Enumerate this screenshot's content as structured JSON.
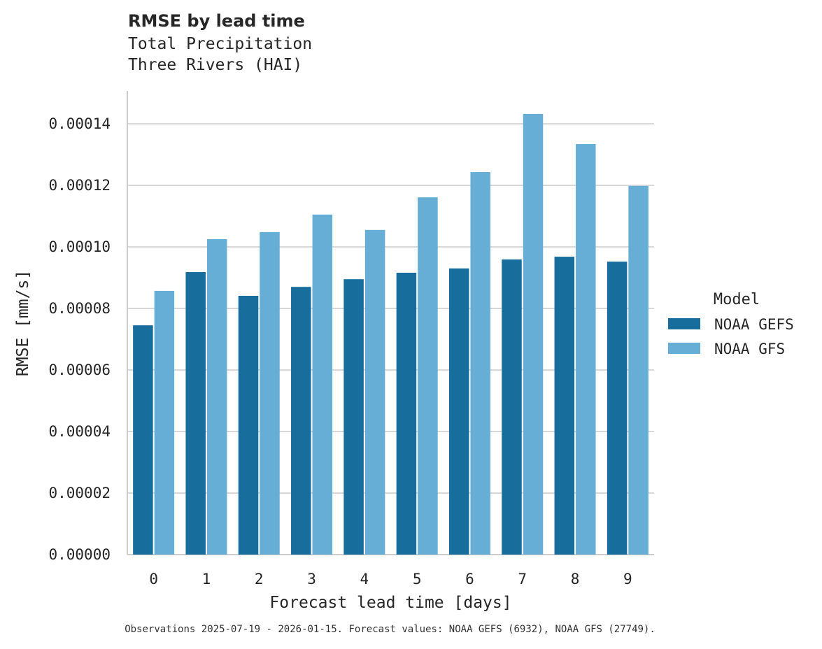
{
  "chart_data": {
    "type": "bar",
    "title": "RMSE by lead time",
    "subtitle_lines": [
      "Total Precipitation",
      "Three Rivers (HAI)"
    ],
    "xlabel": "Forecast lead time [days]",
    "ylabel": "RMSE [mm/s]",
    "categories": [
      "0",
      "1",
      "2",
      "3",
      "4",
      "5",
      "6",
      "7",
      "8",
      "9"
    ],
    "ylim": [
      0,
      0.000151
    ],
    "yticks": [
      0,
      2e-05,
      4e-05,
      6e-05,
      8e-05,
      0.0001,
      0.00012,
      0.00014
    ],
    "ytick_labels": [
      "0.00000",
      "0.00002",
      "0.00004",
      "0.00006",
      "0.00008",
      "0.00010",
      "0.00012",
      "0.00014"
    ],
    "grid": "horizontal",
    "legend": {
      "title": "Model",
      "placement": "right"
    },
    "series": [
      {
        "name": "NOAA GEFS",
        "color": "#176d9c",
        "values": [
          7.45e-05,
          9.18e-05,
          8.41e-05,
          8.7e-05,
          8.95e-05,
          9.16e-05,
          9.3e-05,
          9.59e-05,
          9.68e-05,
          9.52e-05
        ]
      },
      {
        "name": "NOAA GFS",
        "color": "#66aed6",
        "values": [
          8.57e-05,
          0.0001025,
          0.0001048,
          0.0001105,
          0.0001055,
          0.0001161,
          0.0001243,
          0.0001432,
          0.0001334,
          0.0001198
        ]
      }
    ],
    "footnote": "Observations 2025-07-19 - 2026-01-15. Forecast values: NOAA GEFS (6932), NOAA GFS (27749)."
  }
}
